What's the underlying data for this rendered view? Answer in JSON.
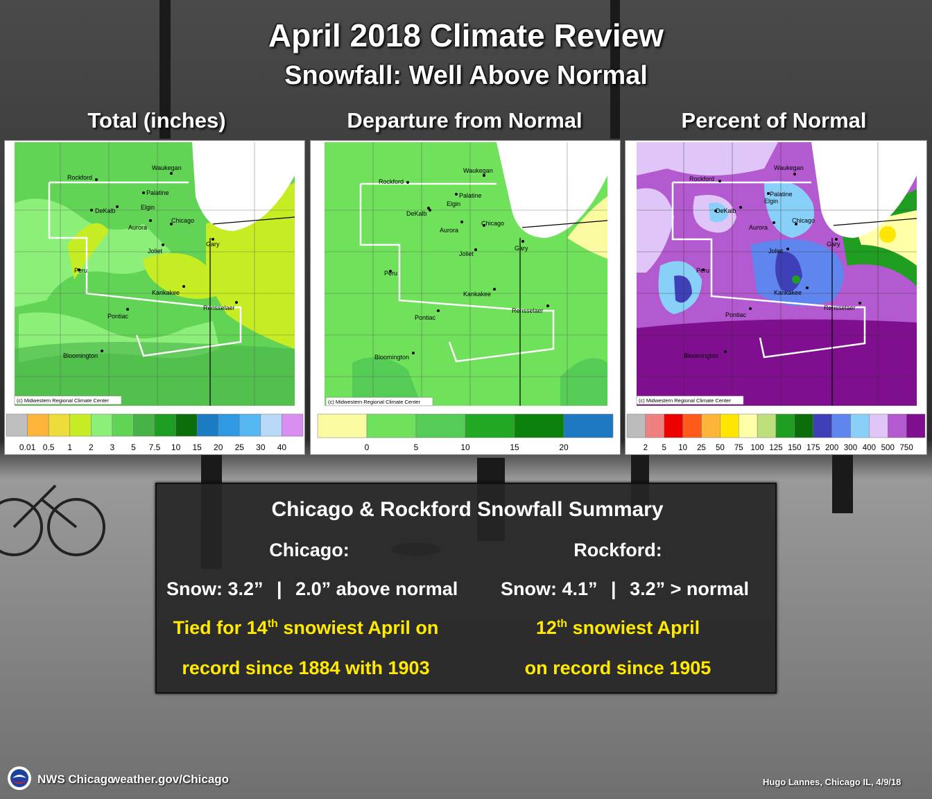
{
  "header": {
    "title": "April 2018 Climate Review",
    "subtitle": "Snowfall: Well Above Normal"
  },
  "panels": [
    {
      "title": "Total (inches)",
      "credit": "(c) Midwestern Regional Climate Center",
      "legend": {
        "colors": [
          "#bfbfbf",
          "#ffb43a",
          "#eedc3a",
          "#c6ec24",
          "#8cef7a",
          "#62d455",
          "#47b347",
          "#1d9e22",
          "#0b6e0b",
          "#1d7bc2",
          "#2f9ae2",
          "#55b8f2",
          "#b7d8f7",
          "#d98ef2"
        ],
        "labels": [
          "0.01",
          "0.5",
          "1",
          "2",
          "3",
          "5",
          "7.5",
          "10",
          "15",
          "20",
          "25",
          "30",
          "40"
        ]
      }
    },
    {
      "title": "Departure from Normal",
      "credit": "(c) Midwestern Regional Climate Center",
      "legend": {
        "colors": [
          "#fafaa0",
          "#6fe15a",
          "#55cc55",
          "#22a822",
          "#0b800b",
          "#1f78c2"
        ],
        "labels": [
          "0",
          "5",
          "10",
          "15",
          "20"
        ]
      }
    },
    {
      "title": "Percent of Normal",
      "credit": "(c) Midwestern Regional Climate Center",
      "legend": {
        "colors": [
          "#bcbcbc",
          "#ee8080",
          "#ee0000",
          "#ff5a1a",
          "#ffb43a",
          "#ffe600",
          "#ffffa8",
          "#bde07a",
          "#1f9e22",
          "#0b6e0b",
          "#3f3fb8",
          "#5f85ee",
          "#88d0f8",
          "#e0c6f8",
          "#b45ad0",
          "#7f0f8f"
        ],
        "labels": [
          "2",
          "5",
          "10",
          "25",
          "50",
          "75",
          "100",
          "125",
          "150",
          "175",
          "200",
          "300",
          "400",
          "500",
          "750"
        ]
      }
    }
  ],
  "cities": [
    "Rockford",
    "Waukegan",
    "Palatine",
    "Elgin",
    "DeKalb",
    "Aurora",
    "Chicago",
    "Joliet",
    "Gary",
    "Peru",
    "Kankakee",
    "Rensselaer",
    "Pontiac",
    "Bloomington"
  ],
  "summary": {
    "title": "Chicago & Rockford Snowfall Summary",
    "chicago": {
      "heading": "Chicago:",
      "snow_label": "Snow:  3.2”",
      "divider": "|",
      "departure": "2.0” above normal",
      "rank_pre": "Tied for 14",
      "rank_sup": "th",
      "rank_post": " snowiest April on",
      "rank_line2": "record since 1884 with 1903"
    },
    "rockford": {
      "heading": "Rockford:",
      "snow_label": "Snow: 4.1”",
      "divider": "|",
      "departure": "3.2” > normal",
      "rank_pre": "12",
      "rank_sup": "th",
      "rank_post": " snowiest April",
      "rank_line2": "on record since 1905"
    }
  },
  "footer": {
    "org": "NWS Chicago",
    "url": "weather.gov/Chicago",
    "credit": "Hugo Lannes, Chicago IL,  4/9/18"
  }
}
